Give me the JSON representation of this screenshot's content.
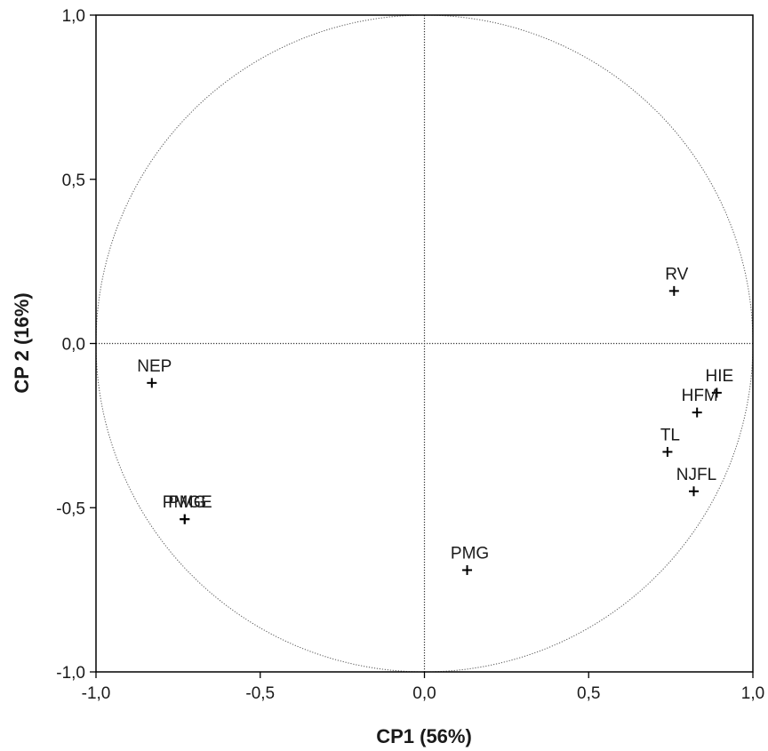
{
  "chart_data": {
    "type": "scatter",
    "title": "",
    "xlabel": "CP1 (56%)",
    "ylabel": "CP 2 (16%)",
    "xlim": [
      -1.0,
      1.0
    ],
    "ylim": [
      -1.0,
      1.0
    ],
    "x_ticks": [
      "-1,0",
      "-0,5",
      "0,0",
      "0,5",
      "1,0"
    ],
    "y_ticks": [
      "1,0",
      "0,5",
      "0,0",
      "-0,5",
      "-1,0"
    ],
    "x_tick_values": [
      -1.0,
      -0.5,
      0.0,
      0.5,
      1.0
    ],
    "y_tick_values": [
      1.0,
      0.5,
      0.0,
      -0.5,
      -1.0
    ],
    "grid": false,
    "unit_circle": true,
    "reference_lines": {
      "x": 0.0,
      "y": 0.0
    },
    "points": [
      {
        "label": "RV",
        "x": 0.76,
        "y": 0.16
      },
      {
        "label": "NEP",
        "x": -0.83,
        "y": -0.12
      },
      {
        "label": "HIE",
        "x": 0.89,
        "y": -0.15
      },
      {
        "label": "HFM",
        "x": 0.83,
        "y": -0.21
      },
      {
        "label": "TL",
        "x": 0.74,
        "y": -0.33
      },
      {
        "label": "NJFL",
        "x": 0.82,
        "y": -0.45
      },
      {
        "label": "PMG",
        "x": -0.73,
        "y": -0.535
      },
      {
        "label": "PMGE",
        "x": -0.73,
        "y": -0.535
      },
      {
        "label": "PMG",
        "x": 0.13,
        "y": -0.69
      }
    ]
  }
}
